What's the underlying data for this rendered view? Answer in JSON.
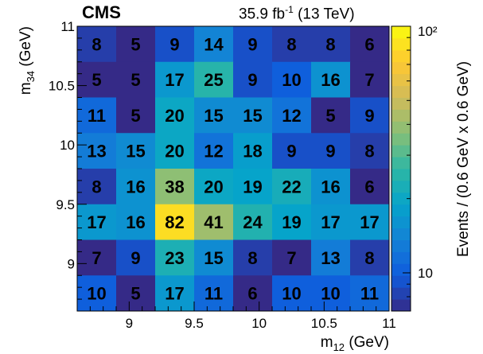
{
  "header": {
    "experiment": "CMS",
    "lumi_value": "35.9 fb",
    "lumi_exp": "-1",
    "energy": "(13 TeV)"
  },
  "chart_data": {
    "type": "heatmap",
    "xlabel_main": "m",
    "xlabel_sub": "12",
    "xlabel_unit": "(GeV)",
    "ylabel_main": "m",
    "ylabel_sub": "34",
    "ylabel_unit": "(GeV)",
    "zlabel": "Events / (0.6 GeV x 0.6 GeV)",
    "xlim": [
      8.6,
      11
    ],
    "ylim": [
      8.6,
      11
    ],
    "x_ticks": [
      "9",
      "9.5",
      "10",
      "10.5",
      "11"
    ],
    "y_ticks": [
      "9",
      "9.5",
      "10",
      "10.5",
      "11"
    ],
    "z_ticks": [
      "10",
      "10²"
    ],
    "z_scale": "log",
    "zlim": [
      7,
      100
    ],
    "grid": false,
    "values_top_to_bottom": [
      [
        8,
        5,
        9,
        14,
        9,
        8,
        8,
        6
      ],
      [
        5,
        5,
        17,
        25,
        9,
        10,
        16,
        7
      ],
      [
        11,
        5,
        20,
        15,
        15,
        12,
        5,
        9
      ],
      [
        13,
        15,
        20,
        12,
        18,
        9,
        9,
        8
      ],
      [
        8,
        16,
        38,
        20,
        19,
        22,
        16,
        6
      ],
      [
        17,
        16,
        82,
        41,
        24,
        19,
        17,
        17
      ],
      [
        7,
        9,
        23,
        15,
        8,
        7,
        13,
        8
      ],
      [
        10,
        5,
        17,
        11,
        6,
        10,
        10,
        11
      ]
    ],
    "palette": [
      "#352a87",
      "#0f5cdd",
      "#1481d6",
      "#06a4ca",
      "#2eb7a4",
      "#87bf77",
      "#d1bb59",
      "#fec832",
      "#f9fb0e"
    ]
  }
}
